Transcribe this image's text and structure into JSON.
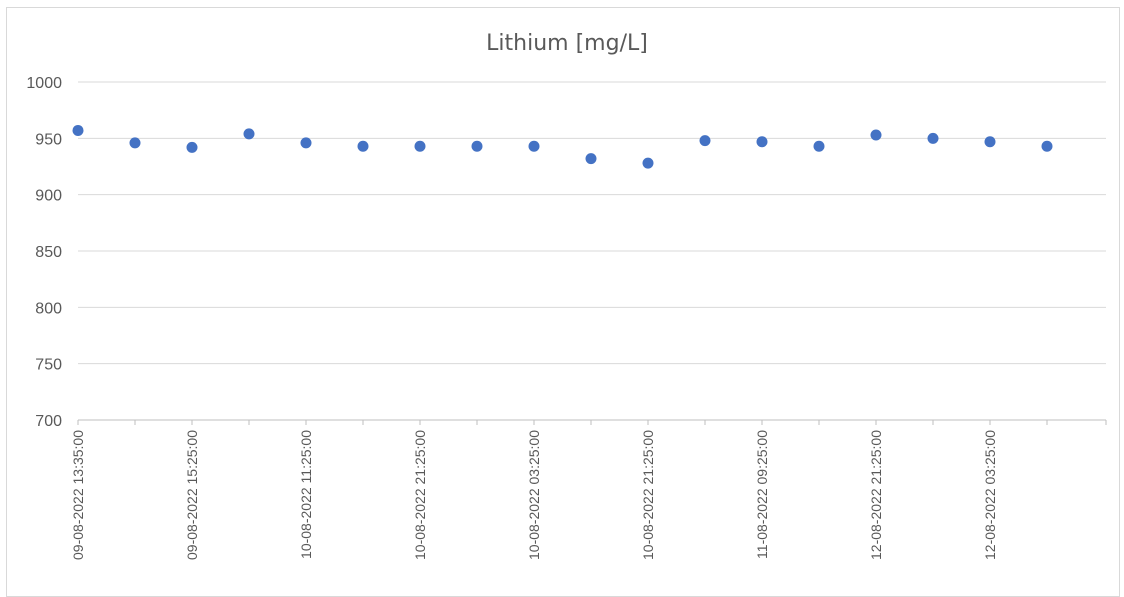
{
  "chart_data": {
    "type": "scatter",
    "title": "Lithium [mg/L]",
    "xlabel": "",
    "ylabel": "",
    "ylim": [
      700,
      1000
    ],
    "yticks": [
      700,
      750,
      800,
      850,
      900,
      950,
      1000
    ],
    "x": [
      "09-08-2022 13:35:00",
      "",
      "09-08-2022 15:25:00",
      "",
      "10-08-2022 11:25:00",
      "",
      "10-08-2022 21:25:00",
      "",
      "10-08-2022 03:25:00",
      "",
      "10-08-2022 21:25:00",
      "",
      "11-08-2022 09:25:00",
      "",
      "12-08-2022 21:25:00",
      "",
      "12-08-2022 03:25:00",
      ""
    ],
    "values": [
      957,
      946,
      942,
      954,
      946,
      943,
      943,
      943,
      943,
      932,
      928,
      948,
      947,
      943,
      953,
      950,
      947,
      943
    ],
    "grid": true,
    "legend": "none",
    "marker_color": "#4472c4"
  }
}
